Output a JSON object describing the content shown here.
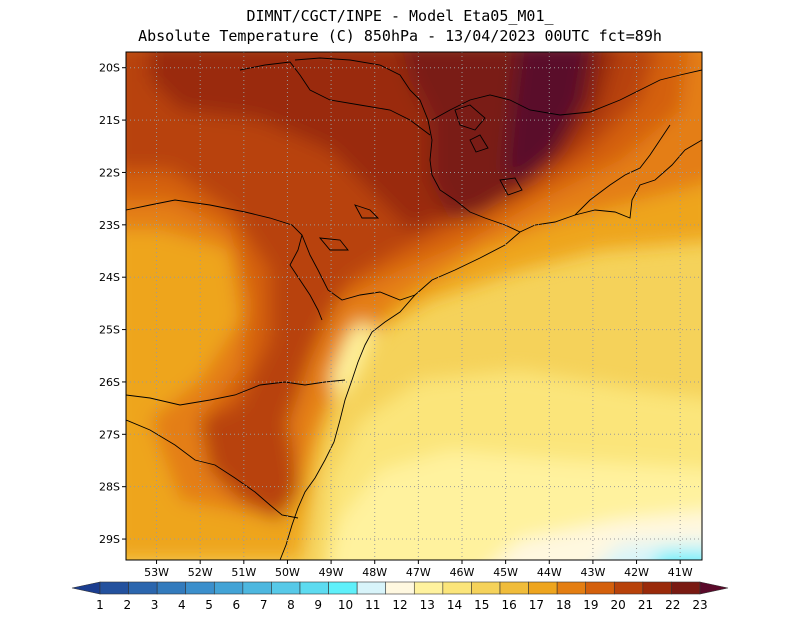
{
  "header": {
    "line1": "DIMNT/CGCT/INPE -  Model Eta05_M01_",
    "line2": "Absolute Temperature (C) 850hPa -  13/04/2023 00UTC fct=89h"
  },
  "map": {
    "lat_labels": [
      "20S",
      "21S",
      "22S",
      "23S",
      "24S",
      "25S",
      "26S",
      "27S",
      "28S",
      "29S"
    ],
    "lon_labels": [
      "53W",
      "52W",
      "51W",
      "50W",
      "49W",
      "48W",
      "47W",
      "46W",
      "45W",
      "44W",
      "43W",
      "42W",
      "41W"
    ],
    "lat_range": [
      -29.4,
      -19.7
    ],
    "lon_range": [
      -53.7,
      -40.5
    ]
  },
  "colorbar": {
    "labels": [
      "1",
      "2",
      "3",
      "4",
      "5",
      "6",
      "7",
      "8",
      "9",
      "10",
      "11",
      "12",
      "13",
      "14",
      "15",
      "16",
      "17",
      "18",
      "19",
      "20",
      "21",
      "22",
      "23"
    ],
    "colors": [
      "#1b3d8f",
      "#23519e",
      "#2b66ae",
      "#337bbd",
      "#3b8fcc",
      "#43a3d6",
      "#4db7df",
      "#57c9e8",
      "#5ddbf0",
      "#5ff0fa",
      "#d8f4fa",
      "#fff8e0",
      "#fff29e",
      "#fbe57a",
      "#f5d25a",
      "#f0bc3a",
      "#eea51e",
      "#e47e12",
      "#d4600c",
      "#b8420a",
      "#9a2a0a",
      "#7a1a12",
      "#5a0a2a"
    ]
  }
}
